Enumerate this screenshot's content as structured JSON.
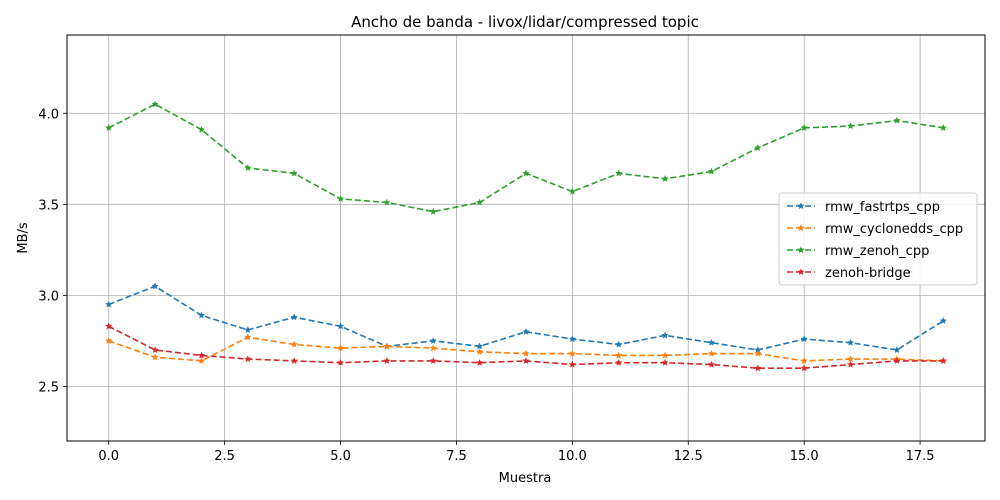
{
  "chart_data": {
    "type": "line",
    "title": "Ancho de banda - livox/lidar/compressed topic",
    "xlabel": "Muestra",
    "ylabel": "MB/s",
    "xlim": [
      -0.9,
      18.9
    ],
    "ylim": [
      2.2,
      4.43
    ],
    "xticks": [
      0.0,
      2.5,
      5.0,
      7.5,
      10.0,
      12.5,
      15.0,
      17.5
    ],
    "xtick_labels": [
      "0.0",
      "2.5",
      "5.0",
      "7.5",
      "10.0",
      "12.5",
      "15.0",
      "17.5"
    ],
    "yticks": [
      2.5,
      3.0,
      3.5,
      4.0
    ],
    "ytick_labels": [
      "2.5",
      "3.0",
      "3.5",
      "4.0"
    ],
    "grid": true,
    "legend_position": "center-right",
    "x": [
      0,
      1,
      2,
      3,
      4,
      5,
      6,
      7,
      8,
      9,
      10,
      11,
      12,
      13,
      14,
      15,
      16,
      17,
      18
    ],
    "series": [
      {
        "name": "rmw_fastrtps_cpp",
        "color": "#1f77b4",
        "values": [
          2.95,
          3.05,
          2.89,
          2.81,
          2.88,
          2.83,
          2.72,
          2.75,
          2.72,
          2.8,
          2.76,
          2.73,
          2.78,
          2.74,
          2.7,
          2.76,
          2.74,
          2.7,
          2.86
        ]
      },
      {
        "name": "rmw_cyclonedds_cpp",
        "color": "#ff7f0e",
        "values": [
          2.75,
          2.66,
          2.64,
          2.77,
          2.73,
          2.71,
          2.72,
          2.71,
          2.69,
          2.68,
          2.68,
          2.67,
          2.67,
          2.68,
          2.68,
          2.64,
          2.65,
          2.65,
          2.64
        ]
      },
      {
        "name": "rmw_zenoh_cpp",
        "color": "#2ca02c",
        "values": [
          3.92,
          4.05,
          3.91,
          3.7,
          3.67,
          3.53,
          3.51,
          3.46,
          3.51,
          3.67,
          3.57,
          3.67,
          3.64,
          3.68,
          3.81,
          3.92,
          3.93,
          3.96,
          3.92
        ]
      },
      {
        "name": "zenoh-bridge",
        "color": "#d62728",
        "values": [
          2.83,
          2.7,
          2.67,
          2.65,
          2.64,
          2.63,
          2.64,
          2.64,
          2.63,
          2.64,
          2.62,
          2.63,
          2.63,
          2.62,
          2.6,
          2.6,
          2.62,
          2.64,
          2.64
        ]
      }
    ]
  }
}
